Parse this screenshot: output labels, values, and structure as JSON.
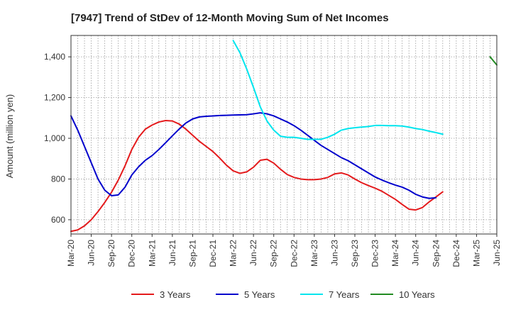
{
  "chart_data": {
    "type": "line",
    "title": "[7947]  Trend of StDev of 12-Month Moving Sum of Net Incomes",
    "xlabel": "",
    "ylabel": "Amount (million yen)",
    "x_ticks": [
      "Mar-20",
      "Jun-20",
      "Sep-20",
      "Dec-20",
      "Mar-21",
      "Jun-21",
      "Sep-21",
      "Dec-21",
      "Mar-22",
      "Jun-22",
      "Sep-22",
      "Dec-22",
      "Mar-23",
      "Jun-23",
      "Sep-23",
      "Dec-23",
      "Mar-24",
      "Jun-24",
      "Sep-24",
      "Dec-24",
      "Mar-25",
      "Jun-25"
    ],
    "y_ticks": [
      600,
      800,
      1000,
      1200,
      1400
    ],
    "ylim": [
      530,
      1505
    ],
    "grid": true,
    "legend_position": "bottom",
    "series": [
      {
        "name": "3 Years",
        "color": "#e41a1c",
        "start": 0,
        "values": [
          543,
          550,
          570,
          600,
          640,
          685,
          735,
          795,
          865,
          945,
          1005,
          1045,
          1065,
          1080,
          1087,
          1085,
          1070,
          1045,
          1015,
          985,
          960,
          935,
          903,
          868,
          840,
          828,
          835,
          858,
          892,
          897,
          878,
          848,
          822,
          808,
          800,
          797,
          797,
          800,
          808,
          825,
          830,
          820,
          800,
          782,
          768,
          755,
          740,
          720,
          700,
          675,
          652,
          648,
          660,
          688,
          712,
          737
        ]
      },
      {
        "name": "5 Years",
        "color": "#0000cc",
        "start": 0,
        "values": [
          1110,
          1040,
          960,
          880,
          800,
          745,
          718,
          722,
          760,
          820,
          860,
          892,
          915,
          945,
          978,
          1012,
          1045,
          1075,
          1095,
          1105,
          1108,
          1110,
          1112,
          1113,
          1114,
          1115,
          1116,
          1120,
          1125,
          1120,
          1110,
          1095,
          1080,
          1062,
          1040,
          1015,
          990,
          965,
          945,
          925,
          905,
          890,
          870,
          850,
          830,
          810,
          795,
          782,
          770,
          760,
          745,
          725,
          712,
          705,
          708
        ]
      },
      {
        "name": "7 Years",
        "color": "#00e5ee",
        "start": 24,
        "values": [
          1480,
          1420,
          1340,
          1250,
          1155,
          1085,
          1040,
          1010,
          1005,
          1005,
          1000,
          995,
          995,
          995,
          1005,
          1020,
          1040,
          1048,
          1052,
          1055,
          1058,
          1063,
          1063,
          1062,
          1062,
          1060,
          1055,
          1048,
          1043,
          1035,
          1028,
          1020
        ]
      },
      {
        "name": "10 Years",
        "color": "#228b22",
        "start": 62,
        "values": [
          1400,
          1360
        ]
      }
    ]
  }
}
